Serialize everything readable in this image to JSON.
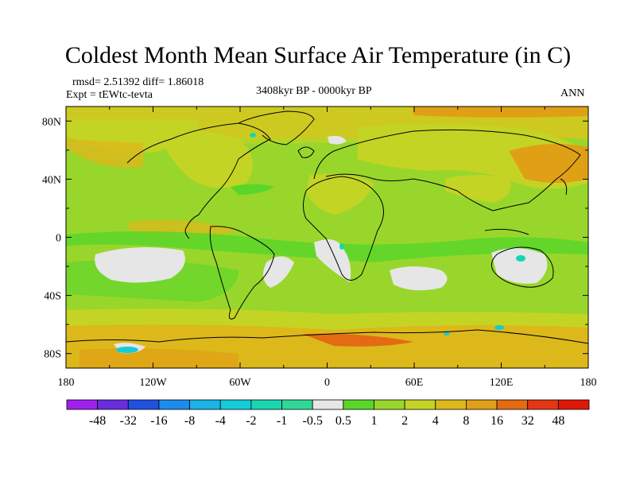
{
  "title": "Coldest Month Mean Surface Air Temperature (in C)",
  "stats_line": "rmsd= 2.51392 diff= 1.86018",
  "experiment_line": "Expt = tEWtc-tevta",
  "period_label": "3408kyr BP - 0000kyr BP",
  "season_label": "ANN",
  "map": {
    "projection": "cylindrical equidistant",
    "lon_range": [
      -180,
      180
    ],
    "lat_range": [
      -90,
      90
    ],
    "x_tick_labels": [
      "180",
      "120W",
      "60W",
      "0",
      "60E",
      "120E",
      "180"
    ],
    "y_tick_labels": [
      "80N",
      "40N",
      "0",
      "40S",
      "80S"
    ],
    "background_field_color": "#99d62b",
    "coastline_color": "#000000"
  },
  "colorbar": {
    "labels": [
      "-48",
      "-32",
      "-16",
      "-8",
      "-4",
      "-2",
      "-1",
      "-0.5",
      "0.5",
      "1",
      "2",
      "4",
      "8",
      "16",
      "32",
      "48"
    ],
    "colors": [
      "#a020f0",
      "#6a2ce0",
      "#2050e0",
      "#1c8cec",
      "#18b4e8",
      "#14ccd8",
      "#18d6b0",
      "#30d898",
      "#e6e6e6",
      "#5ad62a",
      "#99d62b",
      "#c4d424",
      "#dcb81a",
      "#e0a016",
      "#e46a14",
      "#e43612",
      "#e01808"
    ]
  },
  "legend": "-48 -32 -16 -8 -4 -2 -1 -0.5 0.5 1 2 4 8 16 32 48"
}
